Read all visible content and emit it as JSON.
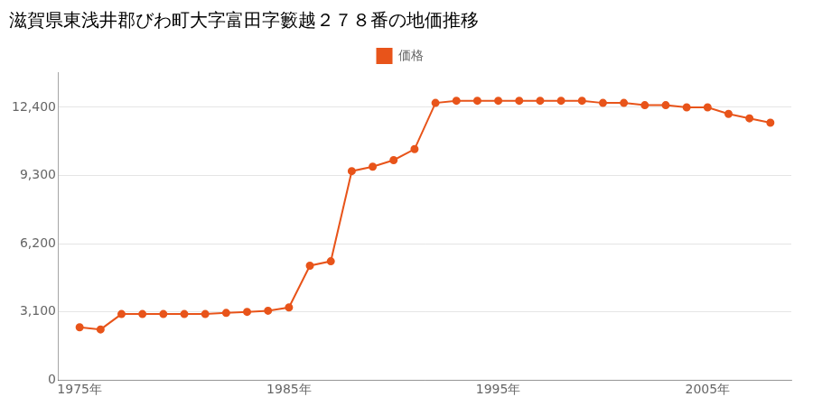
{
  "chart_data": {
    "type": "line",
    "title": "滋賀県東浅井郡びわ町大字富田字籔越２７８番の地価推移",
    "x": [
      1975,
      1976,
      1977,
      1978,
      1979,
      1980,
      1981,
      1982,
      1983,
      1984,
      1985,
      1986,
      1987,
      1988,
      1989,
      1990,
      1991,
      1992,
      1993,
      1994,
      1995,
      1996,
      1997,
      1998,
      1999,
      2000,
      2001,
      2002,
      2003,
      2004,
      2005,
      2006,
      2007,
      2008
    ],
    "series": [
      {
        "name": "価格",
        "color": "#E8541A",
        "marker": "circle",
        "values": [
          2400,
          2300,
          3000,
          3000,
          3000,
          3000,
          3000,
          3050,
          3100,
          3150,
          3300,
          5200,
          5400,
          9500,
          9700,
          10000,
          10500,
          12600,
          12700,
          12700,
          12700,
          12700,
          12700,
          12700,
          12700,
          12600,
          12600,
          12500,
          12500,
          12400,
          12400,
          12100,
          11900,
          11700
        ]
      }
    ],
    "xlim": [
      1974,
      2009
    ],
    "xticks": [
      {
        "value": 1975,
        "label": "1975年"
      },
      {
        "value": 1985,
        "label": "1985年"
      },
      {
        "value": 1995,
        "label": "1995年"
      },
      {
        "value": 2005,
        "label": "2005年"
      }
    ],
    "ylim": [
      0,
      14000
    ],
    "yticks": [
      0,
      {
        "value": 3100,
        "label": "3,100"
      },
      {
        "value": 6200,
        "label": "6,200"
      },
      {
        "value": 9300,
        "label": "9,300"
      },
      {
        "value": 12400,
        "label": "12,400"
      }
    ],
    "grid": "y",
    "legend": "top"
  }
}
